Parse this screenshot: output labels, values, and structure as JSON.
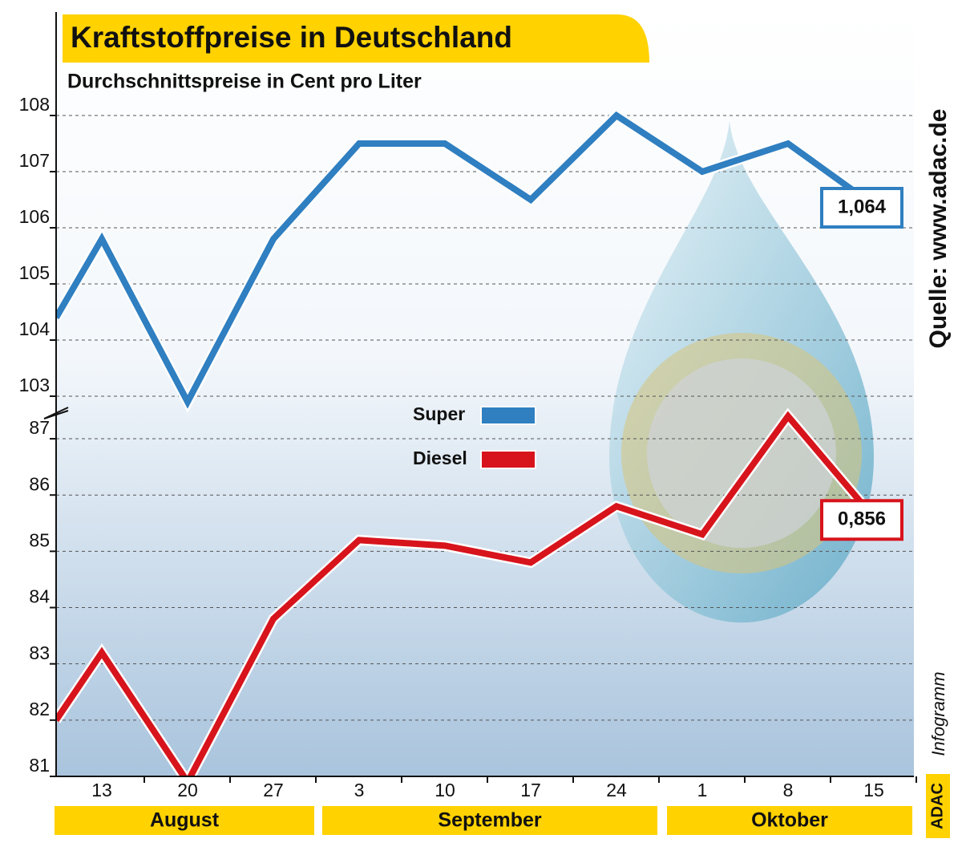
{
  "chart_data": {
    "type": "line",
    "title": "Kraftstoffpreise in Deutschland",
    "subtitle": "Durchschnittspreise in Cent pro Liter",
    "source": "Quelle: www.adac.de",
    "logo": "ADAC",
    "logo_suffix": "Infogramm",
    "categories": [
      null,
      "13",
      "20",
      "27",
      "3",
      "10",
      "17",
      "24",
      "1",
      "8",
      "15"
    ],
    "months": [
      "August",
      "September",
      "Oktober"
    ],
    "series": [
      {
        "name": "Super",
        "color": "#2f7fc1",
        "values": [
          104.4,
          105.8,
          102.9,
          105.8,
          107.5,
          107.5,
          106.5,
          108.0,
          107.0,
          107.5,
          106.4
        ],
        "value_labels": [
          null,
          null,
          null,
          null,
          null,
          null,
          null,
          null,
          null,
          null,
          "1,064"
        ]
      },
      {
        "name": "Diesel",
        "color": "#d7141c",
        "axis": "y2",
        "values": [
          82.0,
          83.2,
          80.9,
          83.8,
          85.2,
          85.1,
          84.8,
          85.8,
          85.3,
          87.4,
          85.6
        ],
        "value_labels": [
          null,
          null,
          null,
          null,
          null,
          null,
          null,
          null,
          null,
          null,
          "0,856"
        ]
      }
    ],
    "ylim": [
      103,
      109.8
    ],
    "yticks": [
      103,
      104,
      105,
      106,
      107,
      108
    ],
    "y2lim": [
      81,
      87.3
    ],
    "y2ticks": [
      81,
      82,
      83,
      84,
      85,
      86,
      87
    ],
    "grid": true
  }
}
